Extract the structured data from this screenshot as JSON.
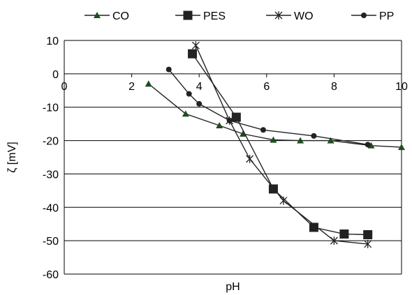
{
  "chart_data": {
    "type": "line",
    "xlabel": "pH",
    "ylabel": "ζ [mV]",
    "xlim": [
      0,
      10
    ],
    "ylim": [
      -60,
      10
    ],
    "x_ticks": [
      "0",
      "2",
      "4",
      "6",
      "8",
      "10"
    ],
    "y_ticks": [
      "10",
      "0",
      "-10",
      "-20",
      "-30",
      "-40",
      "-50",
      "-60"
    ],
    "grid": "horizontal",
    "legend_position": "top",
    "series": [
      {
        "name": "CO",
        "marker": "triangle",
        "color": "#1f4d1f",
        "points": [
          [
            2.5,
            -3
          ],
          [
            3.6,
            -12
          ],
          [
            4.6,
            -15.5
          ],
          [
            5.3,
            -18
          ],
          [
            6.2,
            -19.8
          ],
          [
            7.0,
            -20
          ],
          [
            7.9,
            -20
          ],
          [
            9.1,
            -21.5
          ],
          [
            10.0,
            -22
          ]
        ]
      },
      {
        "name": "PES",
        "marker": "square",
        "color": "#222222",
        "points": [
          [
            3.8,
            6
          ],
          [
            5.1,
            -13
          ],
          [
            6.2,
            -34.5
          ],
          [
            7.4,
            -46
          ],
          [
            8.3,
            -48
          ],
          [
            9.0,
            -48.2
          ]
        ]
      },
      {
        "name": "WO",
        "marker": "star",
        "color": "#222222",
        "points": [
          [
            3.9,
            8.5
          ],
          [
            4.9,
            -14
          ],
          [
            5.5,
            -25.5
          ],
          [
            6.5,
            -38
          ],
          [
            8.0,
            -50
          ],
          [
            9.0,
            -51
          ]
        ]
      },
      {
        "name": "PP",
        "marker": "circle",
        "color": "#222222",
        "points": [
          [
            3.1,
            1.3
          ],
          [
            3.7,
            -6
          ],
          [
            4.0,
            -9
          ],
          [
            4.9,
            -14
          ],
          [
            5.9,
            -16.8
          ],
          [
            7.4,
            -18.6
          ],
          [
            9.0,
            -21.2
          ]
        ]
      }
    ]
  }
}
